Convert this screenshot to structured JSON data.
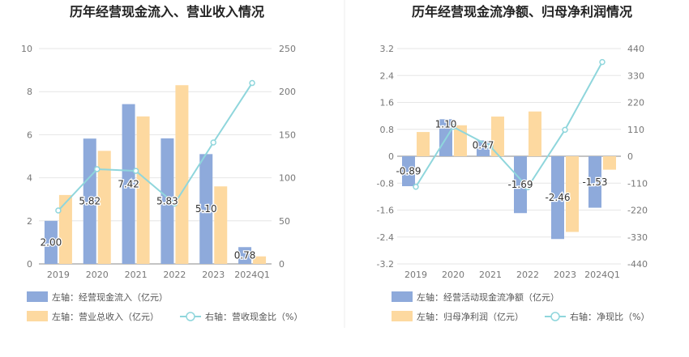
{
  "colors": {
    "bar_primary": "#8eaadb",
    "bar_secondary": "#fdd9a0",
    "line": "#8fd6dc",
    "grid": "#e6e6e6",
    "axis_text": "#777777",
    "title_text": "#222222",
    "legend_text": "#555555",
    "divider": "#eeeeee"
  },
  "chart_data": [
    {
      "type": "bar",
      "title": "历年经营现金流入、营业收入情况",
      "categories": [
        "2019",
        "2020",
        "2021",
        "2022",
        "2023",
        "2024Q1"
      ],
      "left_axis": {
        "ticks": [
          "0",
          "2",
          "4",
          "6",
          "8",
          "10"
        ],
        "ylim": [
          0,
          10
        ]
      },
      "right_axis": {
        "ticks": [
          "0",
          "50",
          "100",
          "150",
          "200",
          "250"
        ],
        "ylim": [
          0,
          250
        ]
      },
      "series": [
        {
          "name": "左轴：经营现金流入（亿元）",
          "kind": "bar",
          "axis": "left",
          "values": [
            2.0,
            5.82,
            7.42,
            5.83,
            5.1,
            0.78
          ],
          "labels": [
            "2.00",
            "5.82",
            "7.42",
            "5.83",
            "5.10",
            "0.78"
          ]
        },
        {
          "name": "左轴：营业总收入（亿元）",
          "kind": "bar",
          "axis": "left",
          "values": [
            3.2,
            5.25,
            6.85,
            8.3,
            3.6,
            0.35
          ]
        },
        {
          "name": "右轴：营收现金比（%）",
          "kind": "line",
          "axis": "right",
          "values": [
            62,
            110,
            108,
            70,
            141,
            210
          ]
        }
      ]
    },
    {
      "type": "bar",
      "title": "历年经营现金流净额、归母净利润情况",
      "categories": [
        "2019",
        "2020",
        "2021",
        "2022",
        "2023",
        "2024Q1"
      ],
      "left_axis": {
        "ticks": [
          "-3.2",
          "-2.4",
          "-1.6",
          "-0.8",
          "0",
          "0.8",
          "1.6",
          "2.4",
          "3.2"
        ],
        "ylim": [
          -3.2,
          3.2
        ]
      },
      "right_axis": {
        "ticks": [
          "-440",
          "-330",
          "-220",
          "-110",
          "0",
          "110",
          "220",
          "330",
          "440"
        ],
        "ylim": [
          -440,
          440
        ]
      },
      "series": [
        {
          "name": "左轴：经营活动现金流净额（亿元）",
          "kind": "bar",
          "axis": "left",
          "values": [
            -0.89,
            1.1,
            0.47,
            -1.69,
            -2.46,
            -1.53
          ],
          "labels": [
            "-0.89",
            "1.10",
            "0.47",
            "-1.69",
            "-2.46",
            "-1.53"
          ]
        },
        {
          "name": "左轴：归母净利润（亿元）",
          "kind": "bar",
          "axis": "left",
          "values": [
            0.72,
            0.92,
            1.18,
            1.33,
            -2.25,
            -0.4
          ]
        },
        {
          "name": "右轴：净现比（%）",
          "kind": "line",
          "axis": "right",
          "values": [
            -125,
            120,
            40,
            -127,
            108,
            385
          ]
        }
      ]
    }
  ]
}
